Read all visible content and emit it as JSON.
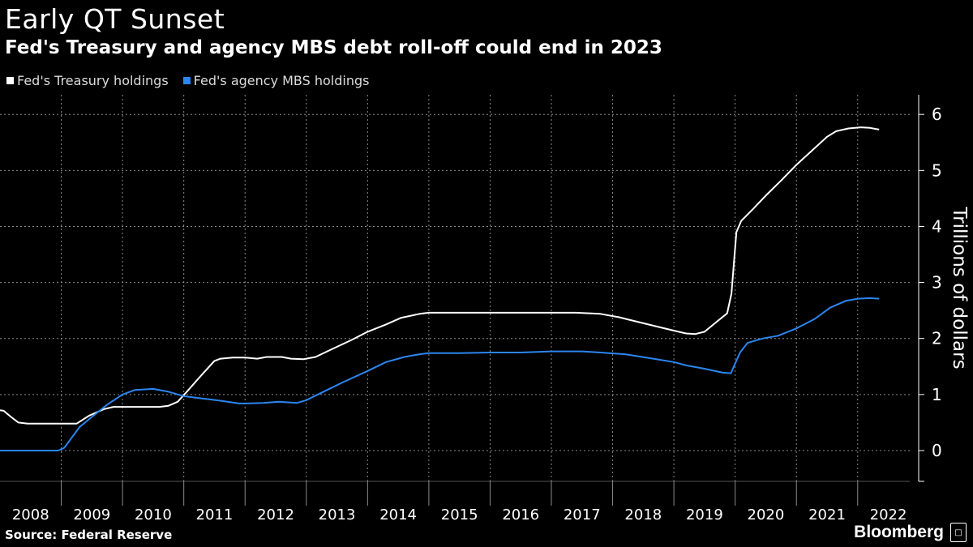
{
  "header": {
    "title": "Early QT Sunset",
    "subtitle": "Fed's Treasury and agency MBS debt roll-off could end in 2023"
  },
  "footer": {
    "source": "Source: Federal Reserve",
    "brand": "Bloomberg"
  },
  "colors": {
    "background": "#000000",
    "treasury": "#ffffff",
    "mbs": "#2b86f0",
    "grid": "#8a8a8a",
    "text": "#ffffff"
  },
  "chart_data": {
    "type": "line",
    "title": "Early QT Sunset",
    "subtitle": "Fed's Treasury and agency MBS debt roll-off could end in 2023",
    "xlabel": "",
    "ylabel": "Trillions of dollars",
    "xlim": [
      2008.0,
      2022.85
    ],
    "ylim": [
      -0.55,
      6.35
    ],
    "yticks": [
      0,
      1,
      2,
      3,
      4,
      5,
      6
    ],
    "ytick_labels": [
      "0",
      "1",
      "2",
      "3",
      "4",
      "5",
      "6"
    ],
    "xtick_labels": [
      "2008",
      "2009",
      "2010",
      "2011",
      "2012",
      "2013",
      "2014",
      "2015",
      "2016",
      "2017",
      "2018",
      "2019",
      "2020",
      "2021",
      "2022"
    ],
    "grid": true,
    "legend_position": "top-left",
    "series": [
      {
        "name": "Fed's Treasury holdings",
        "color": "#ffffff",
        "points": [
          [
            2008.0,
            0.72
          ],
          [
            2008.06,
            0.71
          ],
          [
            2008.18,
            0.6
          ],
          [
            2008.3,
            0.5
          ],
          [
            2008.45,
            0.48
          ],
          [
            2009.0,
            0.48
          ],
          [
            2009.25,
            0.48
          ],
          [
            2009.45,
            0.62
          ],
          [
            2009.7,
            0.74
          ],
          [
            2009.85,
            0.78
          ],
          [
            2010.0,
            0.78
          ],
          [
            2010.3,
            0.78
          ],
          [
            2010.6,
            0.78
          ],
          [
            2010.75,
            0.8
          ],
          [
            2010.9,
            0.87
          ],
          [
            2011.05,
            1.05
          ],
          [
            2011.25,
            1.3
          ],
          [
            2011.4,
            1.48
          ],
          [
            2011.5,
            1.6
          ],
          [
            2011.6,
            1.64
          ],
          [
            2011.8,
            1.66
          ],
          [
            2012.0,
            1.66
          ],
          [
            2012.2,
            1.64
          ],
          [
            2012.35,
            1.67
          ],
          [
            2012.6,
            1.67
          ],
          [
            2012.75,
            1.64
          ],
          [
            2012.95,
            1.63
          ],
          [
            2013.15,
            1.67
          ],
          [
            2013.4,
            1.8
          ],
          [
            2013.75,
            1.98
          ],
          [
            2014.0,
            2.12
          ],
          [
            2014.3,
            2.25
          ],
          [
            2014.55,
            2.37
          ],
          [
            2014.85,
            2.44
          ],
          [
            2015.0,
            2.46
          ],
          [
            2016.0,
            2.46
          ],
          [
            2017.0,
            2.46
          ],
          [
            2017.4,
            2.46
          ],
          [
            2017.8,
            2.44
          ],
          [
            2018.1,
            2.38
          ],
          [
            2018.4,
            2.3
          ],
          [
            2018.7,
            2.22
          ],
          [
            2019.0,
            2.14
          ],
          [
            2019.2,
            2.09
          ],
          [
            2019.35,
            2.08
          ],
          [
            2019.5,
            2.12
          ],
          [
            2019.7,
            2.3
          ],
          [
            2019.87,
            2.45
          ],
          [
            2019.94,
            2.8
          ],
          [
            2020.02,
            3.9
          ],
          [
            2020.1,
            4.1
          ],
          [
            2020.3,
            4.32
          ],
          [
            2020.5,
            4.55
          ],
          [
            2020.75,
            4.82
          ],
          [
            2021.0,
            5.1
          ],
          [
            2021.25,
            5.35
          ],
          [
            2021.5,
            5.6
          ],
          [
            2021.65,
            5.7
          ],
          [
            2021.85,
            5.75
          ],
          [
            2022.05,
            5.77
          ],
          [
            2022.2,
            5.76
          ],
          [
            2022.35,
            5.73
          ]
        ]
      },
      {
        "name": "Fed's agency MBS holdings",
        "color": "#2b86f0",
        "points": [
          [
            2008.0,
            0.0
          ],
          [
            2008.5,
            0.0
          ],
          [
            2008.95,
            0.0
          ],
          [
            2009.05,
            0.05
          ],
          [
            2009.15,
            0.2
          ],
          [
            2009.3,
            0.42
          ],
          [
            2009.5,
            0.6
          ],
          [
            2009.75,
            0.82
          ],
          [
            2010.0,
            1.0
          ],
          [
            2010.2,
            1.08
          ],
          [
            2010.5,
            1.1
          ],
          [
            2010.75,
            1.05
          ],
          [
            2011.0,
            0.97
          ],
          [
            2011.3,
            0.93
          ],
          [
            2011.6,
            0.89
          ],
          [
            2011.9,
            0.84
          ],
          [
            2012.0,
            0.84
          ],
          [
            2012.3,
            0.85
          ],
          [
            2012.55,
            0.87
          ],
          [
            2012.85,
            0.85
          ],
          [
            2013.0,
            0.9
          ],
          [
            2013.3,
            1.06
          ],
          [
            2013.6,
            1.22
          ],
          [
            2014.0,
            1.42
          ],
          [
            2014.3,
            1.58
          ],
          [
            2014.6,
            1.67
          ],
          [
            2014.85,
            1.72
          ],
          [
            2015.0,
            1.74
          ],
          [
            2015.5,
            1.74
          ],
          [
            2016.0,
            1.75
          ],
          [
            2016.5,
            1.75
          ],
          [
            2017.0,
            1.77
          ],
          [
            2017.5,
            1.77
          ],
          [
            2017.8,
            1.75
          ],
          [
            2018.2,
            1.72
          ],
          [
            2018.6,
            1.65
          ],
          [
            2019.0,
            1.58
          ],
          [
            2019.2,
            1.52
          ],
          [
            2019.5,
            1.46
          ],
          [
            2019.8,
            1.39
          ],
          [
            2019.93,
            1.38
          ],
          [
            2020.08,
            1.75
          ],
          [
            2020.2,
            1.92
          ],
          [
            2020.45,
            2.0
          ],
          [
            2020.7,
            2.05
          ],
          [
            2021.0,
            2.18
          ],
          [
            2021.3,
            2.35
          ],
          [
            2021.55,
            2.55
          ],
          [
            2021.8,
            2.67
          ],
          [
            2022.0,
            2.71
          ],
          [
            2022.2,
            2.72
          ],
          [
            2022.35,
            2.71
          ]
        ]
      }
    ]
  }
}
